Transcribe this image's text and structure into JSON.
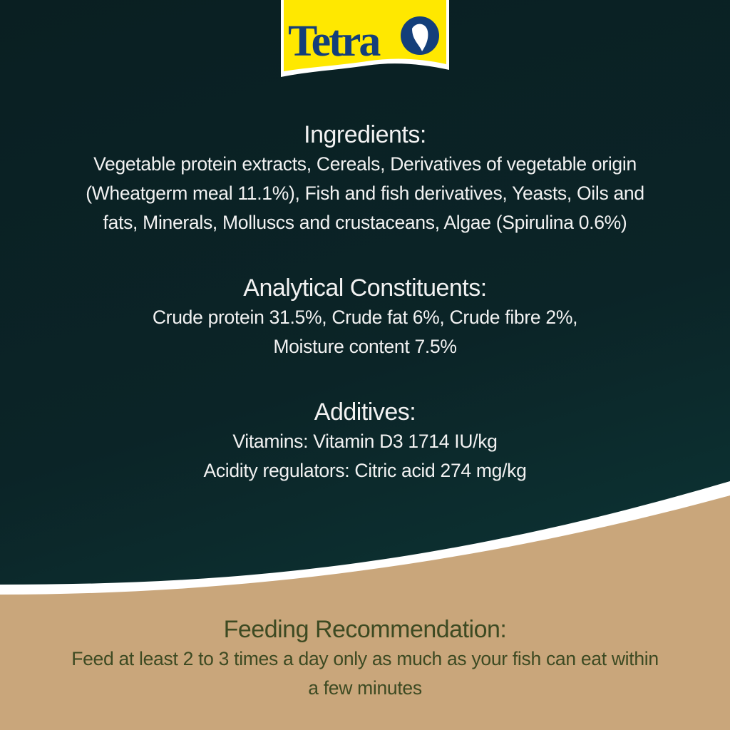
{
  "brand": {
    "logo_text": "Tetra",
    "logo_yellow": "#ffe800",
    "logo_blue": "#143f7a"
  },
  "colors": {
    "dark_background": "#0b2326",
    "kraft_background": "#c9a67b",
    "feeding_text": "#3d4a22"
  },
  "ingredients": {
    "heading": "Ingredients:",
    "lines": [
      "Vegetable protein extracts, Cereals, Derivatives of vegetable origin",
      "(Wheatgerm meal 11.1%), Fish and fish derivatives, Yeasts, Oils and",
      "fats, Minerals, Molluscs and crustaceans, Algae (Spirulina 0.6%)"
    ]
  },
  "analytical": {
    "heading": "Analytical Constituents:",
    "lines": [
      "Crude protein 31.5%, Crude fat 6%, Crude fibre 2%,",
      "Moisture content 7.5%"
    ]
  },
  "additives": {
    "heading": "Additives:",
    "lines": [
      "Vitamins: Vitamin D3 1714 IU/kg",
      "Acidity regulators: Citric acid 274 mg/kg"
    ]
  },
  "feeding": {
    "heading": "Feeding Recommendation:",
    "lines": [
      "Feed at least 2 to 3 times a day only as much as your fish can eat within",
      "a few minutes"
    ]
  }
}
